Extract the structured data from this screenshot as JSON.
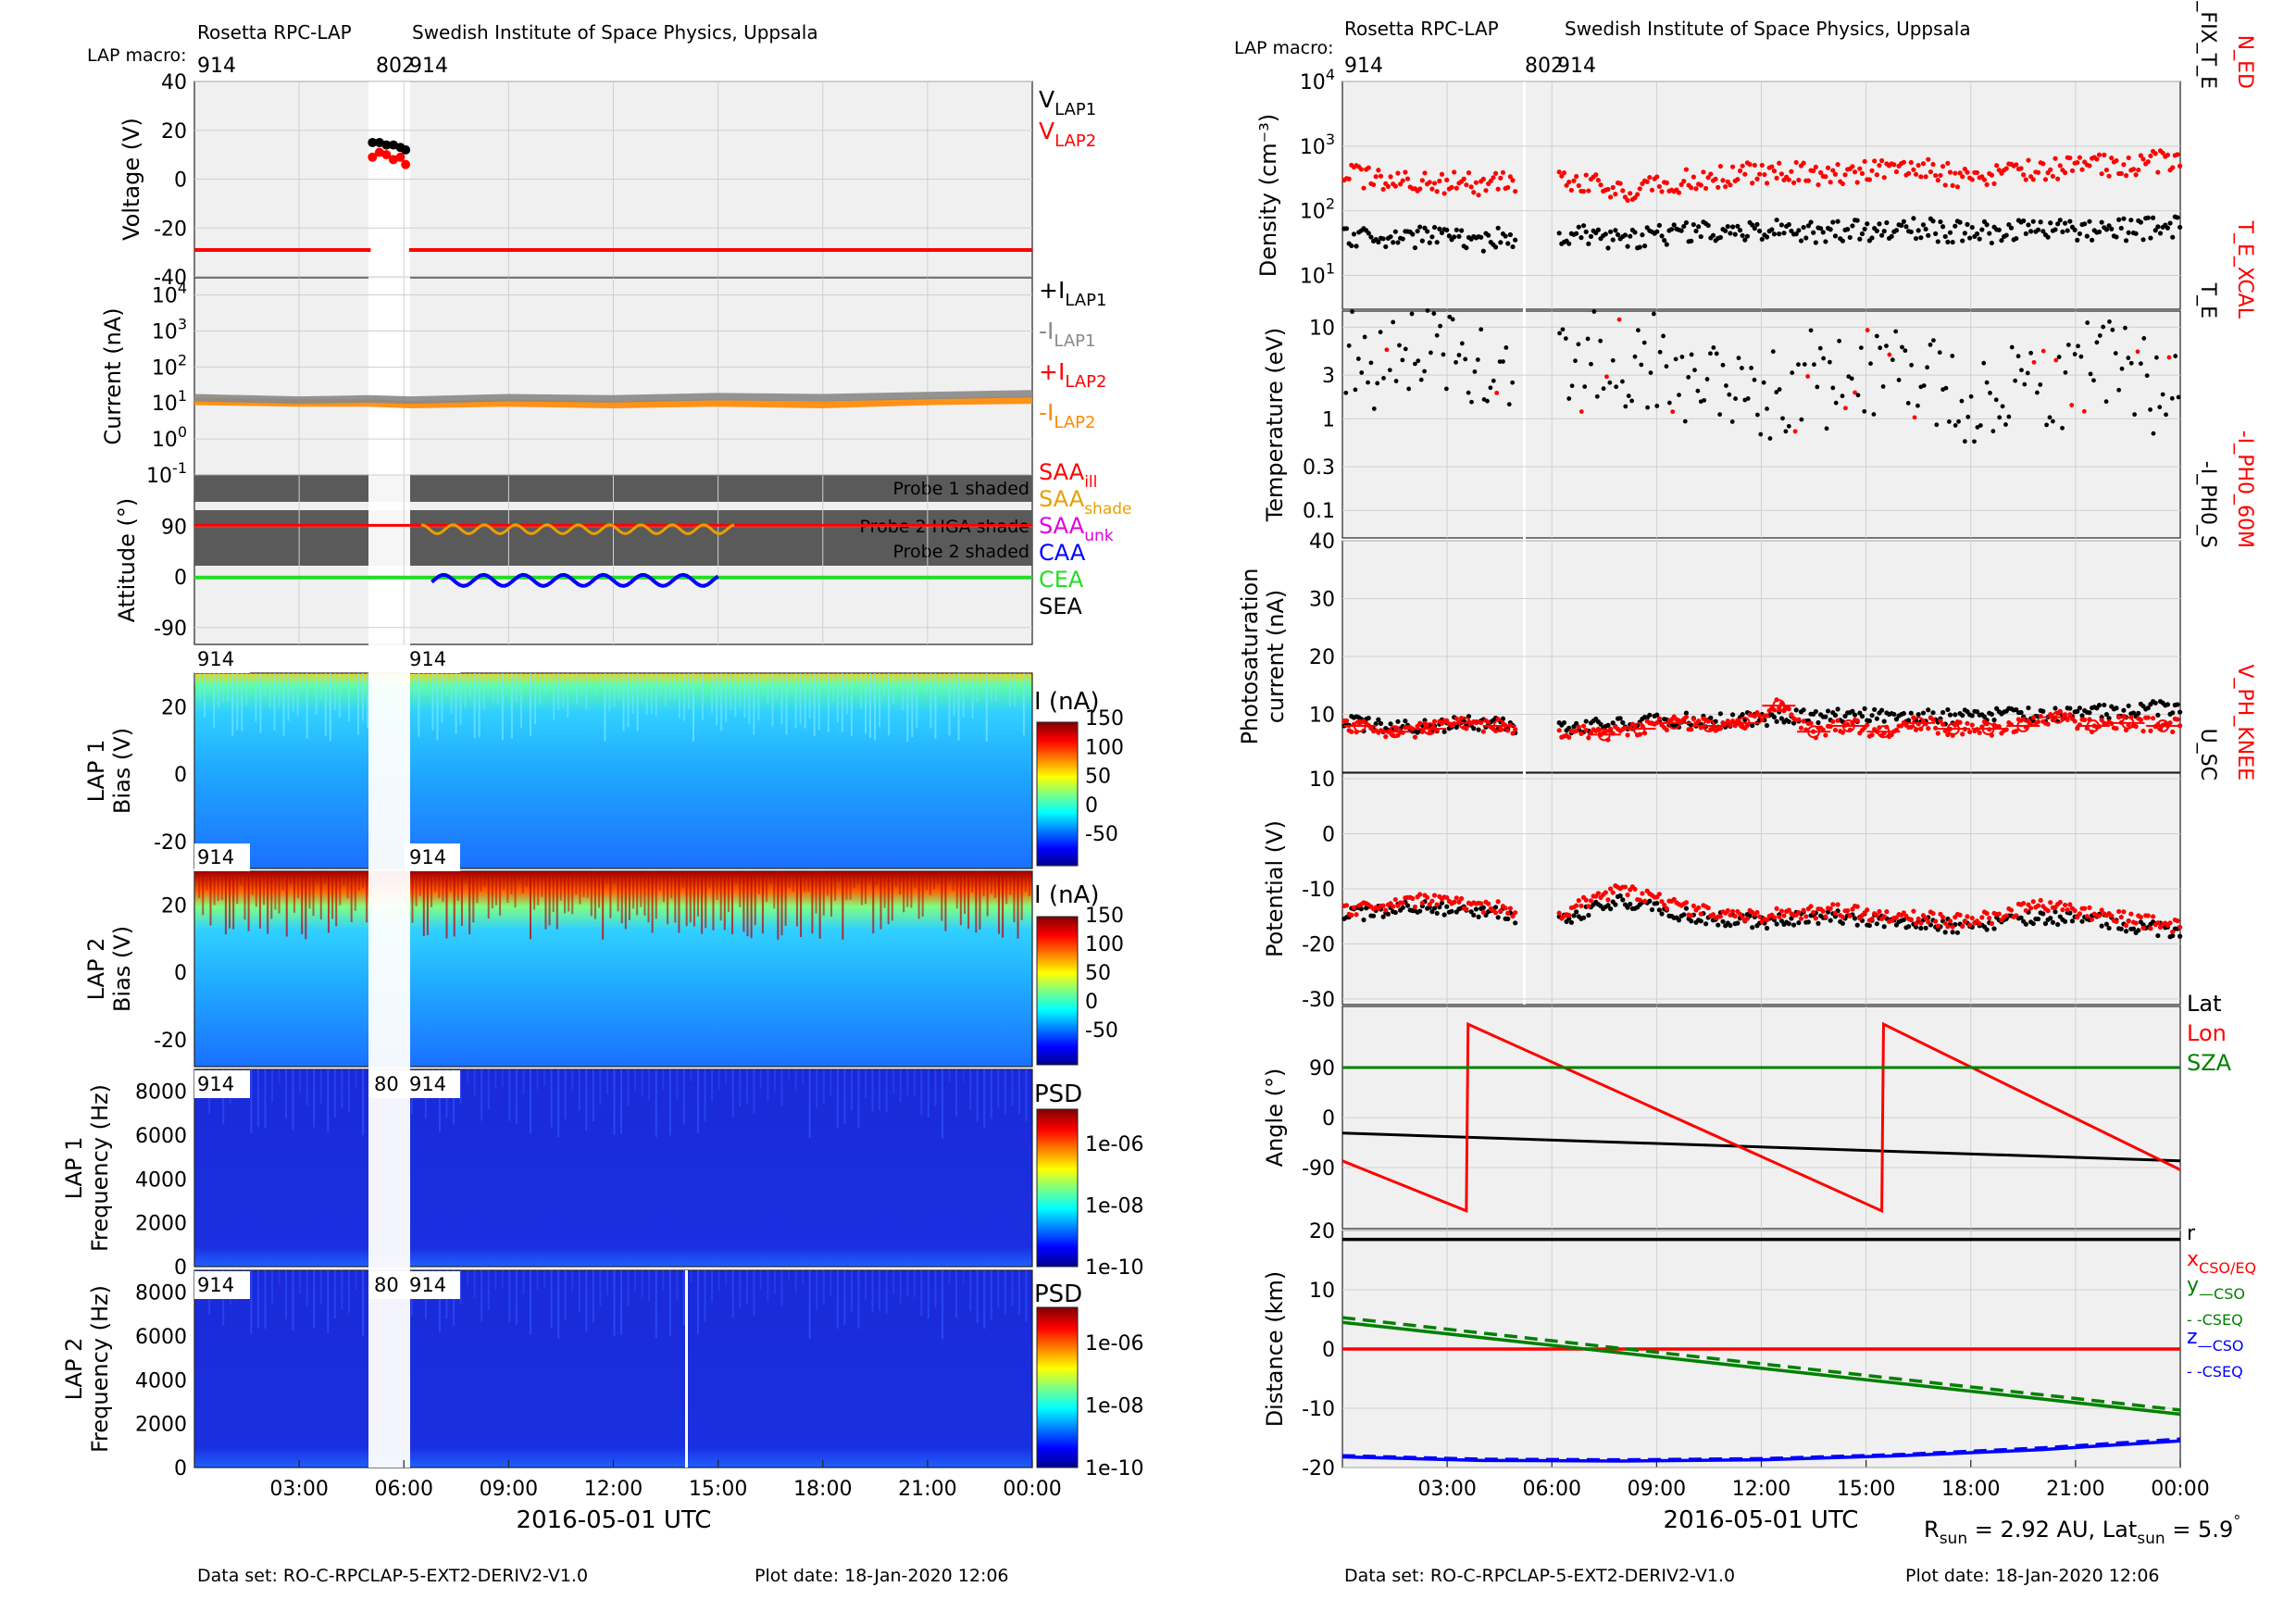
{
  "header": {
    "left_title": "Rosetta RPC-LAP",
    "left_institute": "Swedish Institute of Space Physics, Uppsala",
    "right_title": "Rosetta RPC-LAP",
    "right_institute": "Swedish Institute of Space Physics, Uppsala",
    "macro_label": "LAP macro:",
    "macro_914": "914",
    "macro_802": "802",
    "macro_80": "80"
  },
  "footer": {
    "left_dataset": "Data set: RO-C-RPCLAP-5-EXT2-DERIV2-V1.0",
    "left_plotdate": "Plot date: 18-Jan-2020 12:06",
    "right_dataset": "Data set: RO-C-RPCLAP-5-EXT2-DERIV2-V1.0",
    "right_plotdate": "Plot date: 18-Jan-2020 12:06",
    "rsun_text": "R",
    "rsun_sub": "sun",
    "rsun_val": " = 2.92 AU, Lat",
    "latsun_sub": "sun",
    "latsun_val": " = 5.9",
    "deg": "°"
  },
  "time_axis": {
    "ticks": [
      "03:00",
      "06:00",
      "09:00",
      "12:00",
      "15:00",
      "18:00",
      "21:00",
      "00:00"
    ],
    "xlabel": "2016-05-01 UTC",
    "xlim_hours": [
      0,
      24
    ]
  },
  "chart_data": [
    {
      "type": "scatter",
      "id": "voltage",
      "ylabel": "Voltage (V)",
      "ylim": [
        -40,
        40
      ],
      "yticks": [
        "40",
        "20",
        "0",
        "-20",
        "-40"
      ],
      "legend": [
        {
          "text": "V",
          "sub": "LAP1",
          "color": "#000000"
        },
        {
          "text": "V",
          "sub": "LAP2",
          "color": "#ff0000"
        }
      ],
      "series": [
        {
          "name": "V_LAP1",
          "color": "#000000",
          "x": [
            5.1,
            5.3,
            5.5,
            5.7,
            5.9,
            6.05
          ],
          "y": [
            15,
            15,
            14,
            14,
            13,
            12
          ]
        },
        {
          "name": "V_LAP2",
          "color": "#ff0000",
          "x": [
            5.1,
            5.3,
            5.5,
            5.7,
            5.9,
            6.05
          ],
          "y": [
            9,
            11,
            10,
            8,
            9,
            6
          ]
        },
        {
          "name": "V_LAP2 floor",
          "color": "#ff0000",
          "x": [
            0.0,
            5.05,
            6.15,
            24.0
          ],
          "y": [
            -29,
            -29,
            -29,
            -29
          ]
        }
      ]
    },
    {
      "type": "line",
      "id": "current",
      "ylabel": "Current (nA)",
      "yscale": "log",
      "yticks": [
        "10^4",
        "10^3",
        "10^2",
        "10^1",
        "10^0",
        "10^-1"
      ],
      "legend": [
        {
          "text": "+I",
          "sub": "LAP1",
          "color": "#000000"
        },
        {
          "text": "-I",
          "sub": "LAP1",
          "color": "#888888"
        },
        {
          "text": "+I",
          "sub": "LAP2",
          "color": "#ff0000"
        },
        {
          "text": "-I",
          "sub": "LAP2",
          "color": "#ff8800"
        }
      ],
      "series": [
        {
          "name": "-I_LAP2",
          "color": "#ff8800",
          "x": [
            0.0,
            3.0,
            5.0,
            6.2,
            9.0,
            12.0,
            15.0,
            18.0,
            21.0,
            24.0
          ],
          "y": [
            11,
            10,
            10,
            9,
            10,
            9,
            10,
            9,
            11,
            12
          ]
        },
        {
          "name": "-I_LAP1",
          "color": "#888888",
          "x": [
            0.0,
            3.0,
            5.0,
            6.2,
            9.0,
            12.0,
            15.0,
            18.0,
            21.0,
            24.0
          ],
          "y": [
            14,
            12,
            13,
            12,
            14,
            13,
            15,
            14,
            16,
            18
          ]
        }
      ]
    },
    {
      "type": "line",
      "id": "attitude",
      "ylabel": "Attitude (°)",
      "ylim": [
        -120,
        180
      ],
      "yticks": [
        "90",
        "0",
        "-90"
      ],
      "shade_labels": [
        "Probe 1 shaded",
        "Probe 2 HGA shade",
        "Probe 2 shaded"
      ],
      "legend": [
        {
          "text": "SAA",
          "sub": "ill",
          "color": "#ff0000"
        },
        {
          "text": "SAA",
          "sub": "shade",
          "color": "#e8a000"
        },
        {
          "text": "SAA",
          "sub": "unk",
          "color": "#dd00dd"
        },
        {
          "text": "CAA",
          "sub": "",
          "color": "#0000ff"
        },
        {
          "text": "CEA",
          "sub": "",
          "color": "#22dd22"
        },
        {
          "text": "SEA",
          "sub": "",
          "color": "#000000"
        }
      ],
      "series": [
        {
          "name": "SAA",
          "color": "#ff0000",
          "x": [
            0,
            24
          ],
          "y": [
            92,
            92
          ]
        },
        {
          "name": "CEA",
          "color": "#22dd22",
          "x": [
            0,
            24
          ],
          "y": [
            -1,
            -1
          ]
        },
        {
          "name": "CAA",
          "color": "#0000ff",
          "x": [
            6.8,
            8.0,
            9.0,
            10.0,
            11.0,
            12.0,
            13.0,
            14.0,
            15.0
          ],
          "y": [
            -10,
            5,
            -15,
            3,
            -10,
            5,
            -10,
            4,
            -8
          ]
        }
      ]
    },
    {
      "type": "heatmap",
      "id": "lap1_bias",
      "ylabel_lines": [
        "LAP 1",
        "Bias (V)"
      ],
      "ylim": [
        -28,
        30
      ],
      "yticks": [
        "20",
        "0",
        "-20"
      ],
      "colorbar": {
        "label": "I (nA)",
        "ticks": [
          "150",
          "100",
          "50",
          "0",
          "-50"
        ]
      }
    },
    {
      "type": "heatmap",
      "id": "lap2_bias",
      "ylabel_lines": [
        "LAP 2",
        "Bias (V)"
      ],
      "ylim": [
        -28,
        30
      ],
      "yticks": [
        "20",
        "0",
        "-20"
      ],
      "colorbar": {
        "label": "I (nA)",
        "ticks": [
          "150",
          "100",
          "50",
          "0",
          "-50"
        ]
      }
    },
    {
      "type": "heatmap",
      "id": "lap1_psd",
      "ylabel_lines": [
        "LAP 1",
        "Frequency (Hz)"
      ],
      "ylim": [
        0,
        9000
      ],
      "yticks": [
        "8000",
        "6000",
        "4000",
        "2000",
        "0"
      ],
      "colorbar": {
        "label": "PSD",
        "ticks": [
          "1e-06",
          "1e-08",
          "1e-10"
        ]
      }
    },
    {
      "type": "heatmap",
      "id": "lap2_psd",
      "ylabel_lines": [
        "LAP 2",
        "Frequency (Hz)"
      ],
      "ylim": [
        0,
        9000
      ],
      "yticks": [
        "8000",
        "6000",
        "4000",
        "2000",
        "0"
      ],
      "colorbar": {
        "label": "PSD",
        "ticks": [
          "1e-06",
          "1e-08",
          "1e-10"
        ]
      }
    },
    {
      "type": "scatter",
      "id": "density",
      "ylabel": "Density (cm⁻³)",
      "yscale": "log",
      "ylim": [
        3,
        10000
      ],
      "yticks": [
        "10^4",
        "10^3",
        "10^2",
        "10^1"
      ],
      "legend_rot": [
        {
          "text": "N_ED",
          "color": "#ff0000"
        },
        {
          "text": "N_E_FIX_T_E",
          "color": "#000000"
        }
      ],
      "series": [
        {
          "name": "N_ED",
          "color": "#ff0000",
          "x": [
            0,
            2,
            4,
            6,
            8,
            10,
            12,
            14,
            16,
            18,
            20,
            22,
            24
          ],
          "y": [
            350,
            300,
            250,
            350,
            200,
            300,
            400,
            350,
            500,
            300,
            450,
            500,
            600
          ]
        },
        {
          "name": "N_E_FIX_T_E",
          "color": "#000000",
          "x": [
            0,
            2,
            4,
            6,
            8,
            10,
            12,
            14,
            16,
            18,
            20,
            22,
            24
          ],
          "y": [
            40,
            40,
            35,
            45,
            35,
            45,
            50,
            45,
            55,
            45,
            50,
            50,
            55
          ]
        }
      ]
    },
    {
      "type": "scatter",
      "id": "temperature",
      "ylabel": "Temperature (eV)",
      "yscale": "log",
      "ylim": [
        0.05,
        15
      ],
      "yticks": [
        "10",
        "3",
        "1",
        "0.3",
        "0.1"
      ],
      "legend_rot": [
        {
          "text": "T_E_XCAL",
          "color": "#ff0000"
        },
        {
          "text": "T_E",
          "color": "#000000"
        }
      ],
      "series": [
        {
          "name": "T_E",
          "color": "#000000",
          "x": [
            0,
            2,
            4,
            7,
            9,
            11,
            13,
            15,
            17,
            19,
            21,
            23,
            24
          ],
          "y": [
            5,
            6,
            4,
            5,
            3,
            2,
            3,
            4,
            2,
            3,
            4,
            2,
            1
          ]
        }
      ]
    },
    {
      "type": "scatter",
      "id": "photosat",
      "ylabel_lines": [
        "Photosaturation",
        "current (nA)"
      ],
      "ylim": [
        0,
        40
      ],
      "yticks": [
        "40",
        "30",
        "20",
        "10"
      ],
      "legend_rot": [
        {
          "text": "-I_PH0_60M",
          "color": "#ff0000"
        },
        {
          "text": "-I_PH0_S",
          "color": "#000000"
        }
      ],
      "series": [
        {
          "name": "-I_PH0_S",
          "color": "#000000",
          "x": [
            0,
            2,
            4,
            5,
            7,
            9,
            11,
            13,
            15,
            17,
            19,
            21,
            23,
            24
          ],
          "y": [
            8.5,
            8,
            8.5,
            8,
            8,
            9,
            9,
            9.5,
            10,
            9.5,
            10,
            10,
            11,
            11
          ]
        },
        {
          "name": "-I_PH0_60M",
          "color": "#ff0000",
          "x": [
            0.5,
            1.5,
            2.5,
            3.5,
            4.5,
            7.5,
            8.5,
            9.5,
            10.5,
            11.5,
            12.5,
            13.5,
            14.5,
            15.5,
            16.5,
            17.5,
            18.5,
            19.5,
            20.5,
            21.5,
            22.5,
            23.5
          ],
          "y": [
            8,
            7,
            7.5,
            8.5,
            8,
            6.5,
            7.5,
            8.5,
            8,
            8.5,
            11.5,
            7,
            8,
            7,
            8.5,
            7.5,
            7.5,
            8,
            9.5,
            8,
            8.5,
            8
          ]
        }
      ]
    },
    {
      "type": "scatter",
      "id": "potential",
      "ylabel": "Potential (V)",
      "ylim": [
        -31,
        11
      ],
      "yticks": [
        "10",
        "0",
        "-10",
        "-20",
        "-30"
      ],
      "legend_rot": [
        {
          "text": "V_PH_KNEE",
          "color": "#ff0000"
        },
        {
          "text": "U_SC",
          "color": "#000000"
        }
      ],
      "series": [
        {
          "name": "U_SC",
          "color": "#000000",
          "x": [
            0,
            2,
            4,
            6,
            8,
            10,
            12,
            14,
            16,
            18,
            20,
            22,
            24
          ],
          "y": [
            -15,
            -13,
            -14,
            -16,
            -12,
            -15,
            -16,
            -15,
            -16,
            -17,
            -15,
            -16,
            -18
          ]
        },
        {
          "name": "V_PH_KNEE",
          "color": "#ff0000",
          "x": [
            0,
            2,
            4,
            6,
            8,
            10,
            12,
            14,
            16,
            18,
            20,
            22,
            24
          ],
          "y": [
            -14,
            -12,
            -13,
            -15,
            -10,
            -14,
            -15,
            -14,
            -15,
            -16,
            -13,
            -15,
            -17
          ]
        }
      ]
    },
    {
      "type": "line",
      "id": "angle",
      "ylabel": "Angle (°)",
      "ylim": [
        -200,
        200
      ],
      "yticks": [
        "90",
        "0",
        "-90"
      ],
      "legend": [
        {
          "text": "Lat",
          "sub": "",
          "color": "#000000"
        },
        {
          "text": "Lon",
          "sub": "",
          "color": "#ff0000"
        },
        {
          "text": "SZA",
          "sub": "",
          "color": "#008000"
        }
      ],
      "series": [
        {
          "name": "Lat",
          "color": "#000000",
          "x": [
            0,
            24
          ],
          "y": [
            -28,
            -78
          ]
        },
        {
          "name": "Lon",
          "color": "#ff0000",
          "x": [
            0,
            3.55,
            3.6,
            15.45,
            15.5,
            24
          ],
          "y": [
            -78,
            -168,
            168,
            -168,
            168,
            -94
          ]
        },
        {
          "name": "SZA",
          "color": "#008000",
          "x": [
            0,
            24
          ],
          "y": [
            90,
            90
          ]
        }
      ]
    },
    {
      "type": "line",
      "id": "distance",
      "ylabel": "Distance (km)",
      "ylim": [
        -20,
        20
      ],
      "yticks": [
        "20",
        "10",
        "0",
        "-10",
        "-20"
      ],
      "legend": [
        {
          "text": "r",
          "sub": "",
          "color": "#000000"
        },
        {
          "text": "x",
          "sub": "CSO/EQ",
          "color": "#ff0000"
        },
        {
          "text": "y",
          "sub": "—CSO",
          "color": "#008000"
        },
        {
          "text": "",
          "sub": "- -CSEQ",
          "color": "#008000"
        },
        {
          "text": "z",
          "sub": "—CSO",
          "color": "#0000ff"
        },
        {
          "text": "",
          "sub": "- -CSEQ",
          "color": "#0000ff"
        }
      ],
      "series": [
        {
          "name": "r",
          "color": "#000000",
          "x": [
            0,
            24
          ],
          "y": [
            18.5,
            18.5
          ]
        },
        {
          "name": "x CSO/EQ",
          "color": "#ff0000",
          "x": [
            0,
            24
          ],
          "y": [
            0,
            0
          ]
        },
        {
          "name": "y CSO",
          "color": "#008000",
          "dash": false,
          "x": [
            0,
            24
          ],
          "y": [
            4.5,
            -11
          ]
        },
        {
          "name": "y CSEQ",
          "color": "#008000",
          "dash": true,
          "x": [
            0,
            24
          ],
          "y": [
            5.3,
            -10.3
          ]
        },
        {
          "name": "z CSO",
          "color": "#0000ff",
          "dash": false,
          "x": [
            0,
            4,
            8,
            12,
            16,
            20,
            24
          ],
          "y": [
            -18.2,
            -18.8,
            -18.9,
            -18.7,
            -18.0,
            -17.0,
            -15.5
          ]
        },
        {
          "name": "z CSEQ",
          "color": "#0000ff",
          "dash": true,
          "x": [
            0,
            4,
            8,
            12,
            16,
            20,
            24
          ],
          "y": [
            -18.0,
            -18.6,
            -18.7,
            -18.5,
            -17.8,
            -16.7,
            -15.2
          ]
        }
      ]
    }
  ]
}
